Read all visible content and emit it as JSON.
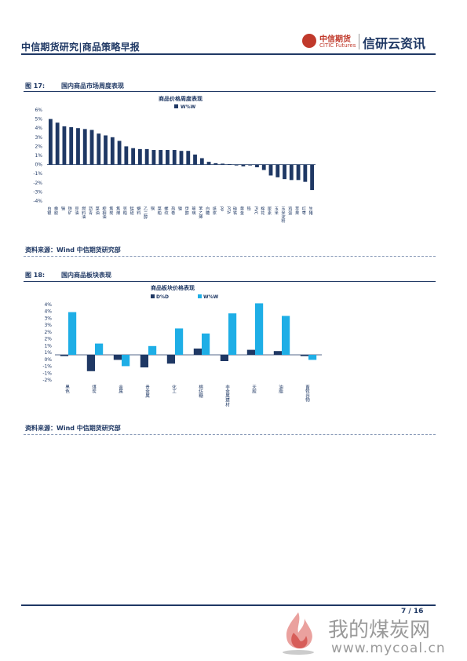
{
  "header": {
    "title": "中信期货研究|商品策略早报",
    "logo_cn": "中信期货",
    "logo_en": "CITIC Futures",
    "brand": "信研云资讯"
  },
  "figure17": {
    "number": "图 17:",
    "caption": "国内商品市场周度表现",
    "source": "资料来源：Wind  中信期货研究部"
  },
  "figure18": {
    "number": "图 18:",
    "caption": "国内商品板块表现",
    "source": "资料来源：Wind  中信期货研究部"
  },
  "footer": {
    "page": "7 / 16",
    "watermark_cn": "我的煤炭网",
    "watermark_url": "www.mycoal.cn"
  },
  "colors": {
    "navy": "#1f3864",
    "light_blue": "#1eaee6",
    "dark_bar": "#1f3864"
  },
  "chart_data": [
    {
      "type": "bar",
      "title": "商品价格周度表现",
      "series": [
        {
          "name": "W%W",
          "color": "#1f3864",
          "values": [
            5.0,
            4.6,
            4.2,
            4.1,
            4.0,
            3.9,
            3.8,
            3.4,
            3.2,
            3.0,
            2.6,
            2.0,
            1.8,
            1.7,
            1.7,
            1.6,
            1.6,
            1.6,
            1.6,
            1.5,
            1.5,
            1.1,
            0.7,
            0.3,
            0.15,
            0.1,
            0.05,
            -0.1,
            -0.2,
            -0.1,
            -0.3,
            -0.6,
            -1.2,
            -1.4,
            -1.6,
            -1.7,
            -1.7,
            -1.9,
            -2.8
          ]
        }
      ],
      "categories": [
        "白银",
        "橡胶",
        "锡",
        "铁矿",
        "豆油",
        "燃料油",
        "沥青",
        "菜油",
        "棕榈油",
        "焦炭",
        "焦煤",
        "豆粕",
        "锰硅",
        "塑料",
        "乙二醇",
        "铜",
        "菜粕",
        "螺纹",
        "热卷",
        "镍",
        "甲醇",
        "玻璃",
        "苯乙烯",
        "白糖",
        "纸浆",
        "PP",
        "PTA",
        "硅铁",
        "黄金",
        "铅",
        "PVC",
        "棉花",
        "尿素",
        "玉米",
        "玉米淀粉",
        "鸡蛋",
        "苹果",
        "红枣",
        "生猪"
      ],
      "ylim": [
        -4,
        6
      ],
      "yticks": [
        "-4%",
        "-3%",
        "-2%",
        "-1%",
        "0%",
        "1%",
        "2%",
        "3%",
        "4%",
        "5%",
        "6%"
      ],
      "grid": false,
      "legend": "top"
    },
    {
      "type": "bar",
      "title": "商品板块价格表现",
      "categories": [
        "黑色",
        "煤炭",
        "金属",
        "贵金属",
        "化工",
        "棉纺糖",
        "非金属建材",
        "天胶",
        "油脂",
        "畜牧谷物"
      ],
      "series": [
        {
          "name": "D%D",
          "color": "#1f3864",
          "values": [
            -0.1,
            -1.3,
            -0.4,
            -1.0,
            -0.7,
            0.5,
            -0.5,
            0.4,
            0.3,
            -0.1
          ]
        },
        {
          "name": "W%W",
          "color": "#1eaee6",
          "values": [
            3.4,
            0.9,
            -0.9,
            0.7,
            2.1,
            1.7,
            3.3,
            4.1,
            3.1,
            -0.4
          ]
        }
      ],
      "ylim": [
        -2,
        4
      ],
      "yticks": [
        "-2%",
        "-1%",
        "-1%",
        "0%",
        "1%",
        "1%",
        "2%",
        "2%",
        "3%",
        "3%",
        "4%",
        "4%"
      ],
      "grid": false,
      "legend": "top"
    }
  ]
}
